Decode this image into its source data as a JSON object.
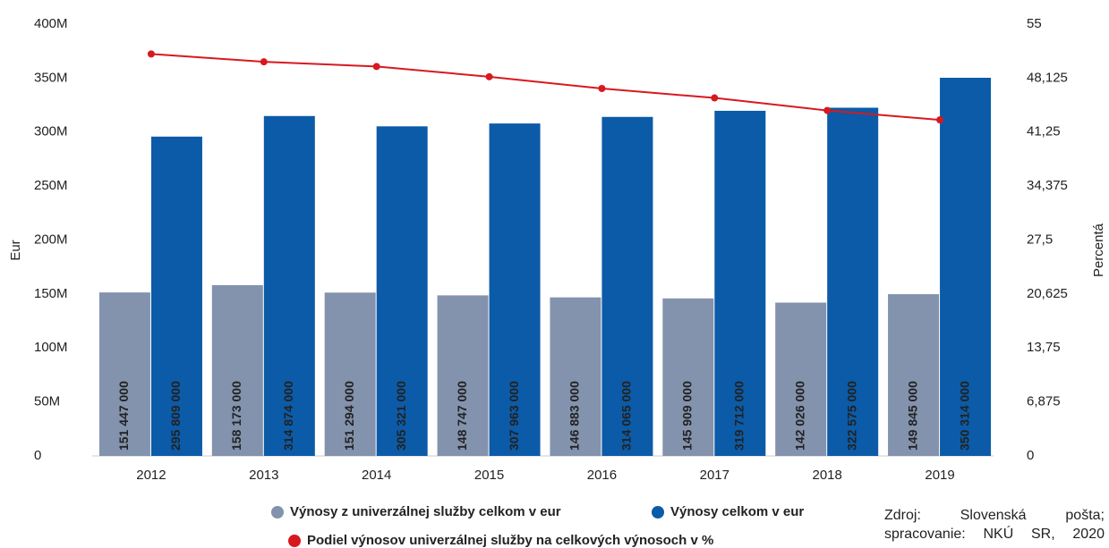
{
  "chart_data": {
    "type": "bar",
    "categories": [
      "2012",
      "2013",
      "2014",
      "2015",
      "2016",
      "2017",
      "2018",
      "2019"
    ],
    "series": [
      {
        "name": "Výnosy z univerzálnej služby celkom v eur",
        "color": "#8393ad",
        "values": [
          151447000,
          158173000,
          151294000,
          148747000,
          146883000,
          145909000,
          142026000,
          149845000
        ],
        "value_labels": [
          "151 447 000",
          "158 173 000",
          "151 294 000",
          "148 747 000",
          "146 883 000",
          "145 909 000",
          "142 026 000",
          "149 845 000"
        ]
      },
      {
        "name": "Výnosy celkom v eur",
        "color": "#0b5ba8",
        "values": [
          295809000,
          314874000,
          305321000,
          307963000,
          314065000,
          319712000,
          322575000,
          350314000
        ],
        "value_labels": [
          "295 809 000",
          "314 874 000",
          "305 321 000",
          "307 963 000",
          "314 065 000",
          "319 712 000",
          "322 575 000",
          "350 314 000"
        ]
      },
      {
        "name": "Podiel výnosov univerzálnej služby na celkových výnosoch v %",
        "color": "#d7191f",
        "type": "line",
        "axis": "y2",
        "values": [
          51.2,
          50.2,
          49.6,
          48.3,
          46.8,
          45.6,
          44.0,
          42.8
        ]
      }
    ],
    "ylabel": "Eur",
    "y2label": "Percentá",
    "ylim": [
      0,
      400000000
    ],
    "yticks": [
      0,
      {
        "value": 50000000,
        "label": "50M"
      },
      {
        "value": 100000000,
        "label": "100M"
      },
      {
        "value": 150000000,
        "label": "150M"
      },
      {
        "value": 200000000,
        "label": "200M"
      },
      {
        "value": 250000000,
        "label": "250M"
      },
      {
        "value": 300000000,
        "label": "300M"
      },
      {
        "value": 350000000,
        "label": "350M"
      },
      {
        "value": 400000000,
        "label": "400M"
      }
    ],
    "y2lim": [
      0,
      55
    ],
    "y2ticks": [
      0,
      {
        "value": 6.875,
        "label": "6,875"
      },
      {
        "value": 13.75,
        "label": "13,75"
      },
      {
        "value": 20.625,
        "label": "20,625"
      },
      {
        "value": 27.5,
        "label": "27,5"
      },
      {
        "value": 34.375,
        "label": "34,375"
      },
      {
        "value": 41.25,
        "label": "41,25"
      },
      {
        "value": 48.125,
        "label": "48,125"
      },
      55
    ],
    "grid": false,
    "source": "Zdroj: Slovenská pošta; spracovanie: NKÚ SR, 2020"
  }
}
